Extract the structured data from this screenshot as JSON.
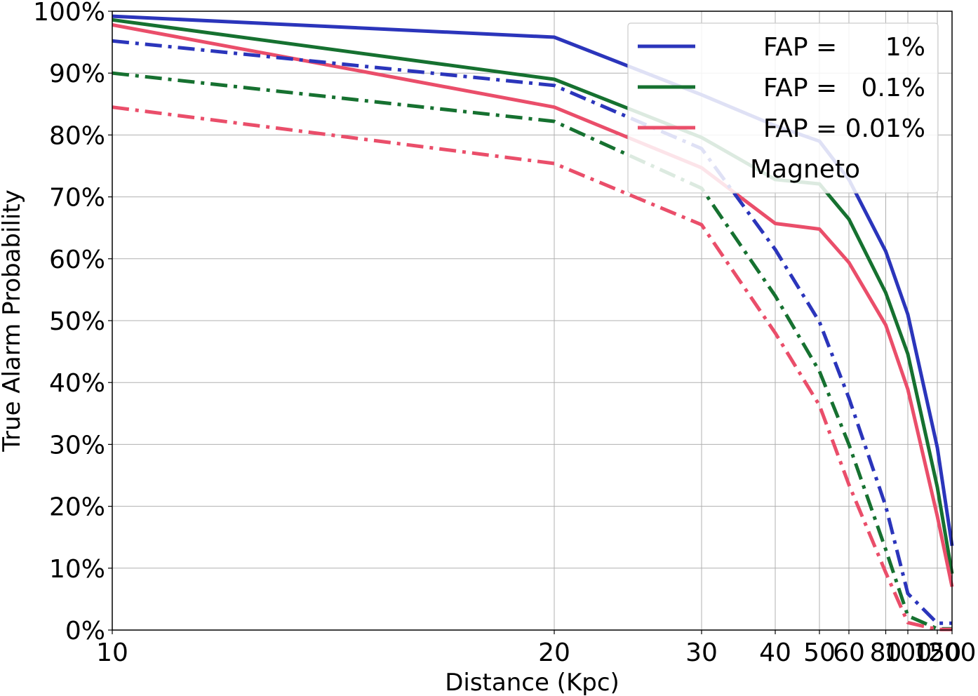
{
  "chart_data": {
    "type": "line",
    "title": "",
    "xlabel": "Distance (Kpc)",
    "ylabel": "True Alarm Probability",
    "x": [
      10,
      20,
      30,
      40,
      50,
      60,
      80,
      100,
      150,
      200
    ],
    "xlim": [
      10,
      200
    ],
    "ylim": [
      0,
      100
    ],
    "x_ticks": [
      10,
      20,
      30,
      40,
      50,
      60,
      80,
      100,
      150,
      200
    ],
    "y_ticks": [
      0,
      10,
      20,
      30,
      40,
      50,
      60,
      70,
      80,
      90,
      100
    ],
    "y_tick_suffix": "%",
    "x_scale": "reciprocal",
    "grid": true,
    "legend_position": "top-right",
    "series": [
      {
        "label": "FAP =      1%",
        "color": "#2b35bb",
        "style": "solid",
        "values": [
          99.2,
          95.8,
          86.5,
          81.5,
          79.0,
          72.8,
          61.2,
          51.0,
          29.5,
          13.6
        ]
      },
      {
        "label": "FAP =   0.1%",
        "color": "#167130",
        "style": "solid",
        "values": [
          98.6,
          89.0,
          79.6,
          72.8,
          72.1,
          66.4,
          54.5,
          44.6,
          23.1,
          9.1
        ]
      },
      {
        "label": "FAP = 0.01%",
        "color": "#ea4e6a",
        "style": "solid",
        "values": [
          97.8,
          84.5,
          74.7,
          65.7,
          64.8,
          59.4,
          49.3,
          38.9,
          18.4,
          7.0
        ]
      },
      {
        "label": "Magneto",
        "color": "#2b35bb",
        "style": "dashdot",
        "values": [
          95.2,
          88.0,
          77.8,
          61.5,
          49.8,
          37.5,
          20.0,
          5.9,
          1.1,
          1.1
        ]
      },
      {
        "label": "",
        "color": "#167130",
        "style": "dashdot",
        "values": [
          90.0,
          82.2,
          71.4,
          54.0,
          41.8,
          30.0,
          13.0,
          2.3,
          0.2,
          0.2
        ]
      },
      {
        "label": "",
        "color": "#ea4e6a",
        "style": "dashdot",
        "values": [
          84.5,
          75.4,
          65.5,
          48.0,
          36.3,
          23.5,
          9.3,
          1.2,
          0.1,
          0.1
        ]
      }
    ]
  }
}
